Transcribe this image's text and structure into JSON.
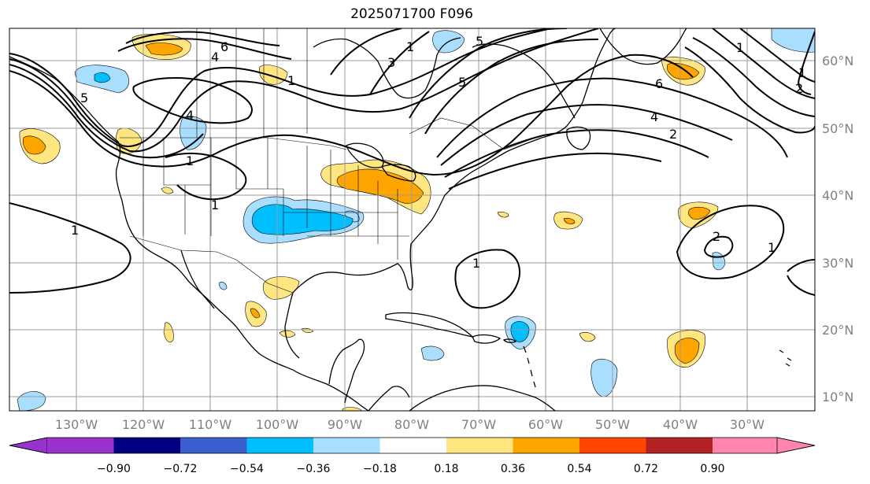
{
  "title": "2025071700 F096",
  "map": {
    "longitude_labels": [
      "130°W",
      "120°W",
      "110°W",
      "100°W",
      "90°W",
      "80°W",
      "70°W",
      "60°W",
      "50°W",
      "40°W",
      "30°W"
    ],
    "latitude_labels": [
      "60°N",
      "50°N",
      "40°N",
      "30°N",
      "20°N",
      "10°N"
    ],
    "contour_labels": [
      "6",
      "5",
      "4",
      "1",
      "4",
      "1",
      "1",
      "5",
      "5",
      "1",
      "3",
      "1",
      "1",
      "6",
      "4",
      "2",
      "1",
      "2",
      "1",
      "1",
      "2"
    ]
  },
  "colorbar": {
    "tick_labels": [
      "−0.90",
      "−0.72",
      "−0.54",
      "−0.36",
      "−0.18",
      "0.18",
      "0.36",
      "0.54",
      "0.72",
      "0.90"
    ],
    "colors": [
      "#9932cc",
      "#000080",
      "#3a5fcd",
      "#00bfff",
      "#aadeff",
      "#ffffff",
      "#ffe680",
      "#ffa500",
      "#ff4500",
      "#b22222",
      "#ff85b0"
    ]
  },
  "shading_colors": {
    "neg_light": "#aadeff",
    "neg_mid": "#00bfff",
    "pos_light": "#ffe680",
    "pos_mid": "#ffa500"
  }
}
